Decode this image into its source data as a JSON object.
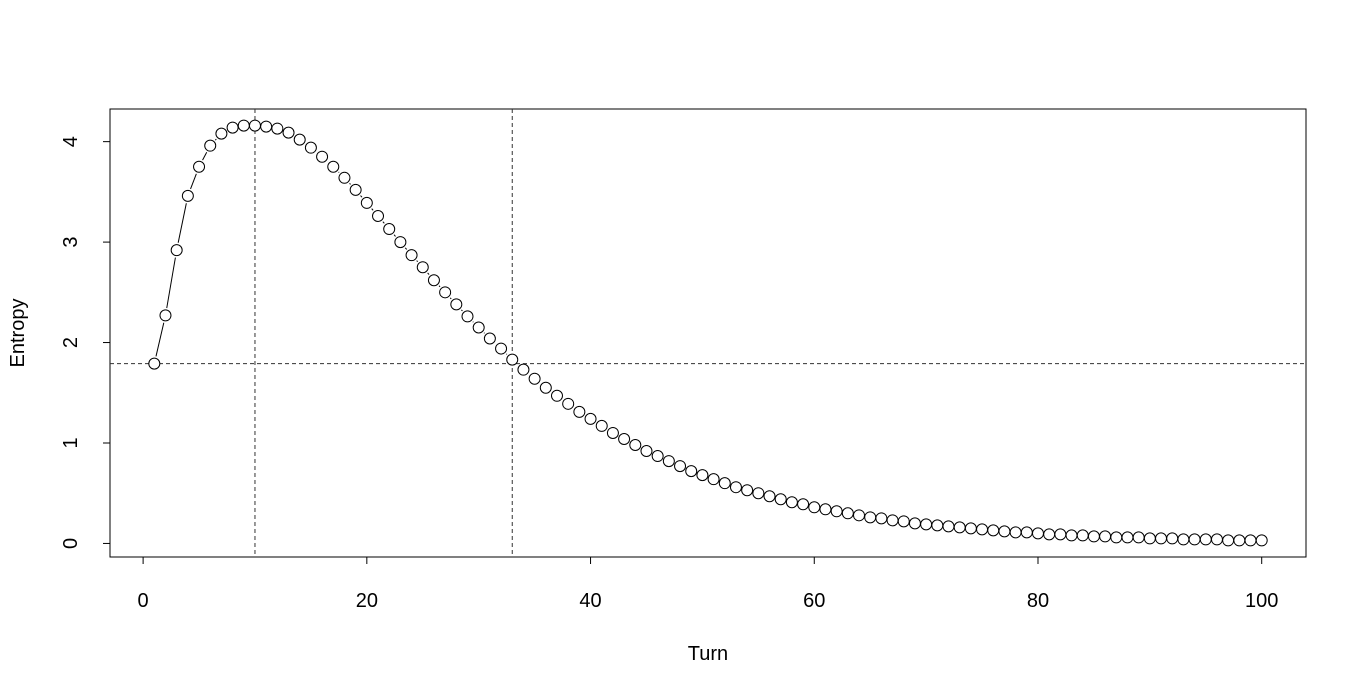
{
  "chart_data": {
    "type": "point-line",
    "x_label": "Turn",
    "y_label": "Entropy",
    "x": [
      1,
      2,
      3,
      4,
      5,
      6,
      7,
      8,
      9,
      10,
      11,
      12,
      13,
      14,
      15,
      16,
      17,
      18,
      19,
      20,
      21,
      22,
      23,
      24,
      25,
      26,
      27,
      28,
      29,
      30,
      31,
      32,
      33,
      34,
      35,
      36,
      37,
      38,
      39,
      40,
      41,
      42,
      43,
      44,
      45,
      46,
      47,
      48,
      49,
      50,
      51,
      52,
      53,
      54,
      55,
      56,
      57,
      58,
      59,
      60,
      61,
      62,
      63,
      64,
      65,
      66,
      67,
      68,
      69,
      70,
      71,
      72,
      73,
      74,
      75,
      76,
      77,
      78,
      79,
      80,
      81,
      82,
      83,
      84,
      85,
      86,
      87,
      88,
      89,
      90,
      91,
      92,
      93,
      94,
      95,
      96,
      97,
      98,
      99,
      100
    ],
    "values": [
      1.79,
      2.27,
      2.92,
      3.46,
      3.75,
      3.96,
      4.08,
      4.14,
      4.16,
      4.16,
      4.15,
      4.13,
      4.09,
      4.02,
      3.94,
      3.85,
      3.75,
      3.64,
      3.52,
      3.39,
      3.26,
      3.13,
      3.0,
      2.87,
      2.75,
      2.62,
      2.5,
      2.38,
      2.26,
      2.15,
      2.04,
      1.94,
      1.83,
      1.73,
      1.64,
      1.55,
      1.47,
      1.39,
      1.31,
      1.24,
      1.17,
      1.1,
      1.04,
      0.98,
      0.92,
      0.87,
      0.82,
      0.77,
      0.72,
      0.68,
      0.64,
      0.6,
      0.56,
      0.53,
      0.5,
      0.47,
      0.44,
      0.41,
      0.39,
      0.36,
      0.34,
      0.32,
      0.3,
      0.28,
      0.26,
      0.25,
      0.23,
      0.22,
      0.2,
      0.19,
      0.18,
      0.17,
      0.16,
      0.15,
      0.14,
      0.13,
      0.12,
      0.11,
      0.11,
      0.1,
      0.09,
      0.09,
      0.08,
      0.08,
      0.07,
      0.07,
      0.06,
      0.06,
      0.06,
      0.05,
      0.05,
      0.05,
      0.04,
      0.04,
      0.04,
      0.04,
      0.03,
      0.03,
      0.03,
      0.03
    ],
    "color": "#000000",
    "xlim": [
      -2.96,
      103.96
    ],
    "ylim": [
      -0.135,
      4.325
    ],
    "xticks": [
      0,
      20,
      40,
      60,
      80,
      100
    ],
    "yticks": [
      0,
      1,
      2,
      3,
      4
    ],
    "vlines": [
      10,
      33
    ],
    "hline": 1.79
  }
}
